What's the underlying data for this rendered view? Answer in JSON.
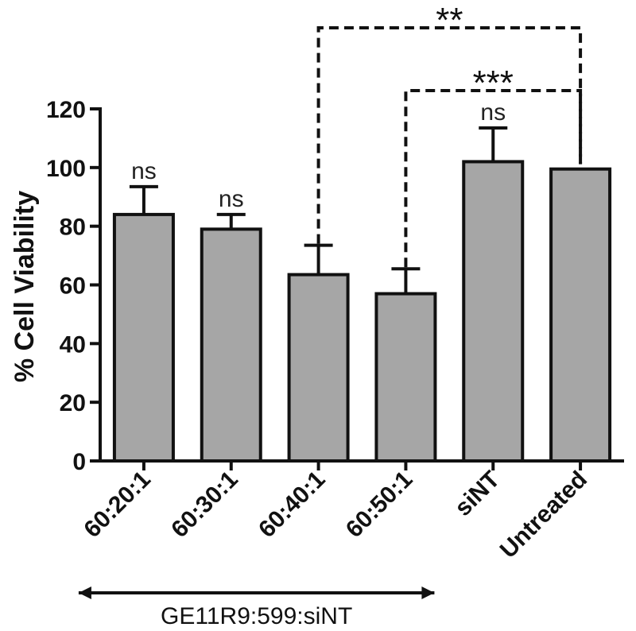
{
  "chart_data": {
    "type": "bar",
    "title": "",
    "xlabel": "",
    "ylabel": "% Cell Viability",
    "ylim": [
      0,
      120
    ],
    "yticks": [
      0,
      20,
      40,
      60,
      80,
      100,
      120
    ],
    "categories": [
      "60:20:1",
      "60:30:1",
      "60:40:1",
      "60:50:1",
      "siNT",
      "Untreated"
    ],
    "values": [
      84,
      79,
      63.5,
      57,
      102,
      99.5
    ],
    "errors": [
      9.5,
      5,
      10,
      8.5,
      11.5,
      0
    ],
    "bar_color": "#a6a6a6",
    "annotations": [
      "ns",
      "ns",
      "",
      "",
      "ns",
      ""
    ],
    "brackets": [
      {
        "from": "60:40:1",
        "to": "Untreated",
        "label": "**"
      },
      {
        "from": "60:50:1",
        "to": "Untreated",
        "label": "***"
      }
    ],
    "group": {
      "label": "GE11R9:599:siNT",
      "categories": [
        "60:20:1",
        "60:30:1",
        "60:40:1",
        "60:50:1"
      ]
    },
    "grid": false,
    "legend": "none"
  }
}
